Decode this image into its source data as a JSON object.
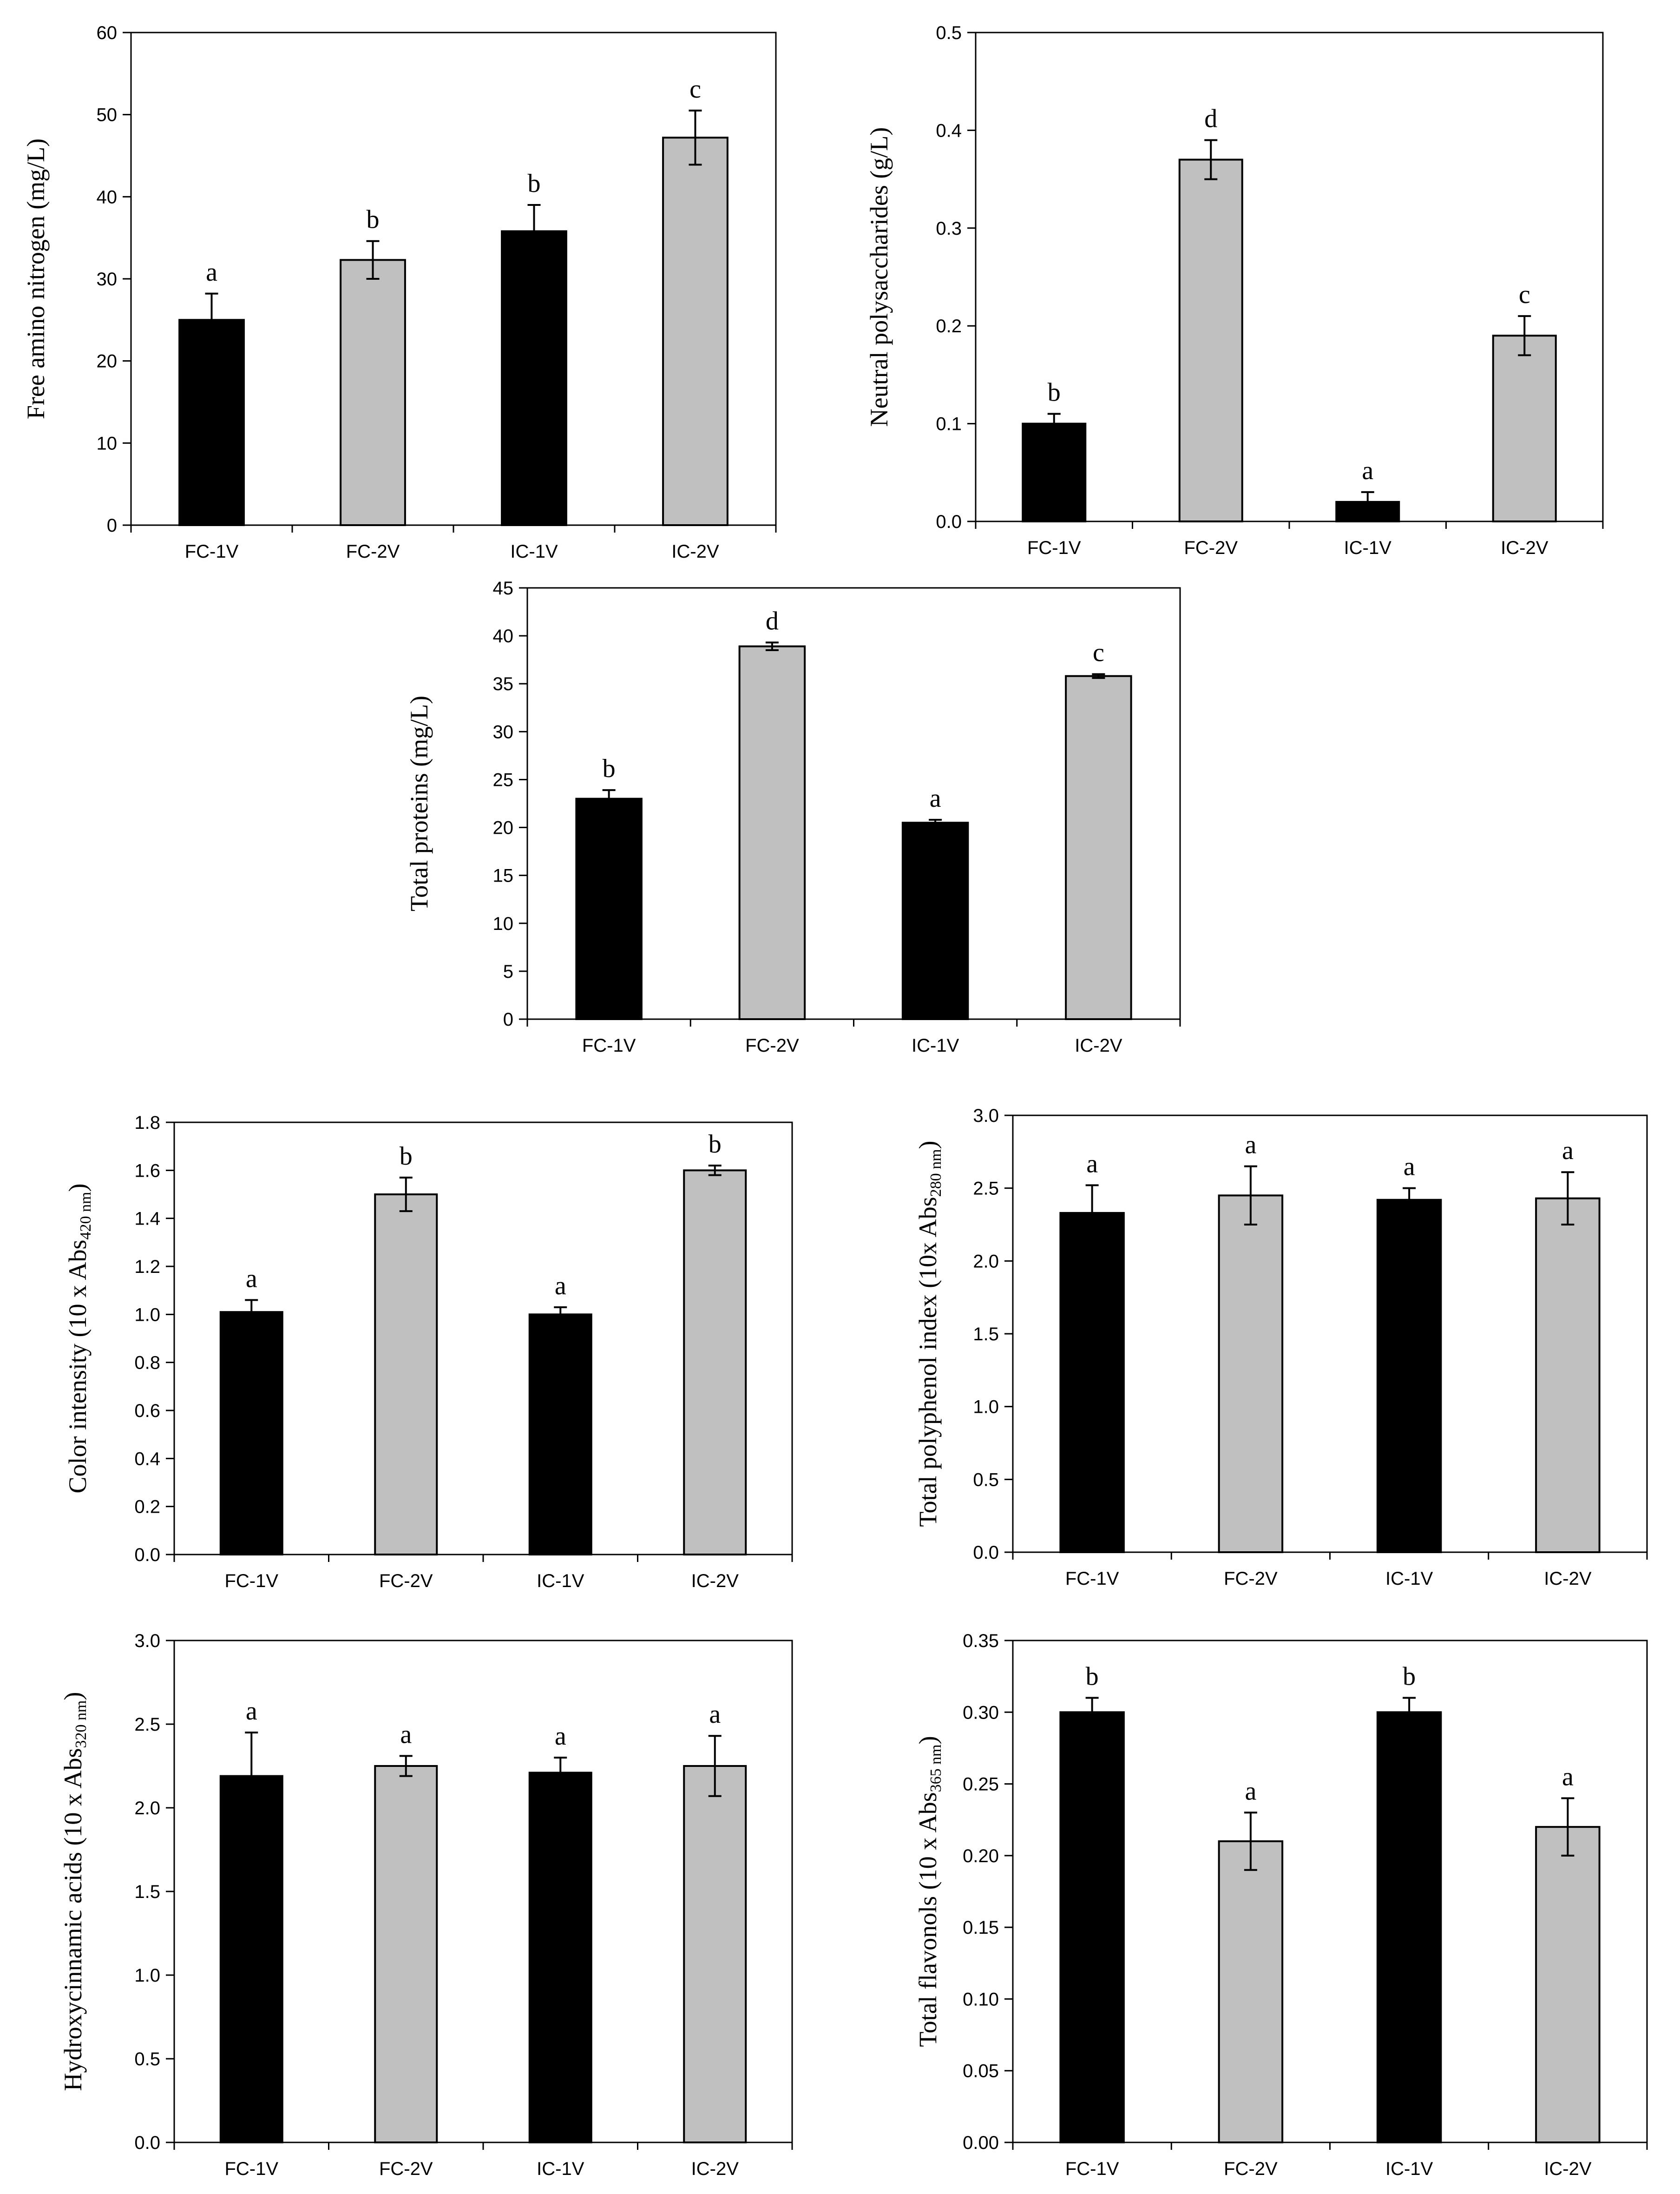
{
  "colors": {
    "dark": "#000000",
    "light": "#c0c0c0"
  },
  "chart_data": [
    {
      "id": "fan",
      "type": "bar",
      "ylabel": "Free amino nitrogen (mg/L)",
      "ylabel_sub": "",
      "ylim": [
        0,
        60
      ],
      "yticks": [
        0,
        10,
        20,
        30,
        40,
        50,
        60
      ],
      "tick_decimals": 0,
      "categories": [
        "FC-1V",
        "FC-2V",
        "IC-1V",
        "IC-2V"
      ],
      "values": [
        25,
        32.3,
        35.8,
        47.2
      ],
      "errors": [
        3.2,
        2.3,
        3.2,
        3.3
      ],
      "letters": [
        "a",
        "b",
        "b",
        "c"
      ],
      "bar_colors": [
        "dark",
        "light",
        "dark",
        "light"
      ]
    },
    {
      "id": "np",
      "type": "bar",
      "ylabel": "Neutral polysaccharides (g/L)",
      "ylabel_sub": "",
      "ylim": [
        0,
        0.5
      ],
      "yticks": [
        0,
        0.1,
        0.2,
        0.3,
        0.4,
        0.5
      ],
      "tick_decimals": 1,
      "categories": [
        "FC-1V",
        "FC-2V",
        "IC-1V",
        "IC-2V"
      ],
      "values": [
        0.1,
        0.37,
        0.02,
        0.19
      ],
      "errors": [
        0.01,
        0.02,
        0.01,
        0.02
      ],
      "letters": [
        "b",
        "d",
        "a",
        "c"
      ],
      "bar_colors": [
        "dark",
        "light",
        "dark",
        "light"
      ]
    },
    {
      "id": "tp",
      "type": "bar",
      "ylabel": "Total proteins (mg/L)",
      "ylabel_sub": "",
      "ylim": [
        0,
        45
      ],
      "yticks": [
        0,
        5,
        10,
        15,
        20,
        25,
        30,
        35,
        40,
        45
      ],
      "tick_decimals": 0,
      "categories": [
        "FC-1V",
        "FC-2V",
        "IC-1V",
        "IC-2V"
      ],
      "values": [
        23.0,
        38.9,
        20.5,
        35.8
      ],
      "errors": [
        0.9,
        0.4,
        0.3,
        0.2
      ],
      "letters": [
        "b",
        "d",
        "a",
        "c"
      ],
      "bar_colors": [
        "dark",
        "light",
        "dark",
        "light"
      ]
    },
    {
      "id": "ci",
      "type": "bar",
      "ylabel": "Color intensity (10 x Abs",
      "ylabel_sub": "420 nm",
      "ylim": [
        0,
        1.8
      ],
      "yticks": [
        0,
        0.2,
        0.4,
        0.6,
        0.8,
        1.0,
        1.2,
        1.4,
        1.6,
        1.8
      ],
      "tick_decimals": 1,
      "categories": [
        "FC-1V",
        "FC-2V",
        "IC-1V",
        "IC-2V"
      ],
      "values": [
        1.01,
        1.5,
        1.0,
        1.6
      ],
      "errors": [
        0.05,
        0.07,
        0.03,
        0.02
      ],
      "letters": [
        "a",
        "b",
        "a",
        "b"
      ],
      "bar_colors": [
        "dark",
        "light",
        "dark",
        "light"
      ]
    },
    {
      "id": "tpi",
      "type": "bar",
      "ylabel": "Total polyphenol index (10x Abs",
      "ylabel_sub": "280 nm",
      "ylim": [
        0,
        3.0
      ],
      "yticks": [
        0,
        0.5,
        1.0,
        1.5,
        2.0,
        2.5,
        3.0
      ],
      "tick_decimals": 1,
      "categories": [
        "FC-1V",
        "FC-2V",
        "IC-1V",
        "IC-2V"
      ],
      "values": [
        2.33,
        2.45,
        2.42,
        2.43
      ],
      "errors": [
        0.19,
        0.2,
        0.08,
        0.18
      ],
      "letters": [
        "a",
        "a",
        "a",
        "a"
      ],
      "bar_colors": [
        "dark",
        "light",
        "dark",
        "light"
      ]
    },
    {
      "id": "ha",
      "type": "bar",
      "ylabel": "Hydroxycinnamic acids (10 x Abs",
      "ylabel_sub": "320 nm",
      "ylim": [
        0,
        3.0
      ],
      "yticks": [
        0,
        0.5,
        1.0,
        1.5,
        2.0,
        2.5,
        3.0
      ],
      "tick_decimals": 1,
      "categories": [
        "FC-1V",
        "FC-2V",
        "IC-1V",
        "IC-2V"
      ],
      "values": [
        2.19,
        2.25,
        2.21,
        2.25
      ],
      "errors": [
        0.26,
        0.06,
        0.09,
        0.18
      ],
      "letters": [
        "a",
        "a",
        "a",
        "a"
      ],
      "bar_colors": [
        "dark",
        "light",
        "dark",
        "light"
      ]
    },
    {
      "id": "tf",
      "type": "bar",
      "ylabel": "Total   flavonols (10 x Abs",
      "ylabel_sub": "365 nm",
      "ylim": [
        0,
        0.35
      ],
      "yticks": [
        0,
        0.05,
        0.1,
        0.15,
        0.2,
        0.25,
        0.3,
        0.35
      ],
      "tick_decimals": 2,
      "categories": [
        "FC-1V",
        "FC-2V",
        "IC-1V",
        "IC-2V"
      ],
      "values": [
        0.3,
        0.21,
        0.3,
        0.22
      ],
      "errors": [
        0.01,
        0.02,
        0.01,
        0.02
      ],
      "letters": [
        "b",
        "a",
        "b",
        "a"
      ],
      "bar_colors": [
        "dark",
        "light",
        "dark",
        "light"
      ]
    }
  ]
}
